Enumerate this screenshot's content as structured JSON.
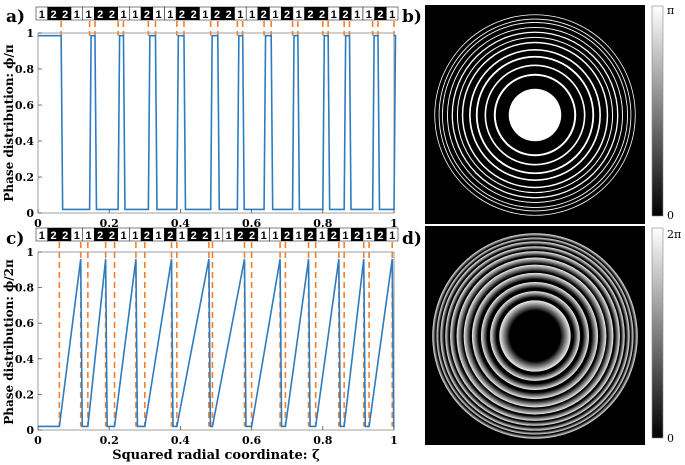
{
  "panels": {
    "a": {
      "label": "a)",
      "ylabel": "Phase distribution: ϕ/π"
    },
    "b": {
      "label": "b)",
      "cb_top": "π",
      "cb_bottom": "0"
    },
    "c": {
      "label": "c)",
      "ylabel": "Phase distribution: ϕ/2π",
      "xlabel": "Squared radial coordinate: ζ"
    },
    "d": {
      "label": "d)",
      "cb_top": "2π",
      "cb_bottom": "0"
    }
  },
  "chart_data": [
    {
      "panel": "a",
      "type": "line",
      "title": "",
      "xlabel": "",
      "ylabel": "Phase distribution: ϕ/π",
      "xlim": [
        0,
        1
      ],
      "ylim": [
        0,
        1
      ],
      "x_ticks": [
        "0",
        "0.2",
        "0.4",
        "0.6",
        "0.8",
        "1"
      ],
      "y_ticks": [
        "0",
        "0.2",
        "0.4",
        "0.6",
        "0.8",
        "1"
      ],
      "line_color": "#2f7bbf",
      "marker_color": "#f08030",
      "step_edges": [
        0.065,
        0.145,
        0.16,
        0.225,
        0.24,
        0.31,
        0.33,
        0.39,
        0.41,
        0.485,
        0.505,
        0.56,
        0.575,
        0.635,
        0.655,
        0.715,
        0.73,
        0.8,
        0.815,
        0.86,
        0.875,
        0.94,
        0.955,
        1.0
      ],
      "code_sequence": [
        "1",
        "2",
        "2",
        "1",
        "1",
        "2",
        "2",
        "1",
        "1",
        "2",
        "1",
        "1",
        "2",
        "2",
        "1",
        "2",
        "2",
        "1",
        "1",
        "2",
        "1",
        "2",
        "1",
        "2",
        "2",
        "1",
        "2",
        "1",
        "1",
        "2",
        "1"
      ]
    },
    {
      "panel": "c",
      "type": "line",
      "title": "",
      "xlabel": "Squared radial coordinate: ζ",
      "ylabel": "Phase distribution: ϕ/2π",
      "xlim": [
        0,
        1
      ],
      "ylim": [
        0,
        1
      ],
      "x_ticks": [
        "0",
        "0.2",
        "0.4",
        "0.6",
        "0.8",
        "1"
      ],
      "y_ticks": [
        "0",
        "0.2",
        "0.4",
        "0.6",
        "0.8",
        "1"
      ],
      "line_color": "#2f7bbf",
      "marker_color": "#f08030",
      "ramps": [
        [
          0.06,
          0.12
        ],
        [
          0.14,
          0.19
        ],
        [
          0.215,
          0.275
        ],
        [
          0.3,
          0.375
        ],
        [
          0.39,
          0.48
        ],
        [
          0.49,
          0.58
        ],
        [
          0.6,
          0.68
        ],
        [
          0.695,
          0.76
        ],
        [
          0.78,
          0.845
        ],
        [
          0.86,
          0.915
        ],
        [
          0.93,
          0.995
        ]
      ],
      "code_sequence": [
        "1",
        "2",
        "2",
        "1",
        "1",
        "2",
        "2",
        "1",
        "1",
        "2",
        "1",
        "2",
        "1",
        "2",
        "2",
        "1",
        "1",
        "2",
        "2",
        "1",
        "1",
        "2",
        "1",
        "2",
        "1",
        "2",
        "1",
        "2",
        "1",
        "2",
        "1"
      ]
    }
  ],
  "colors": {
    "axis": "#333333",
    "dashed": "#f08030",
    "line": "#2f7bbf",
    "cb_dark": "#000000",
    "cb_light": "#ffffff"
  }
}
